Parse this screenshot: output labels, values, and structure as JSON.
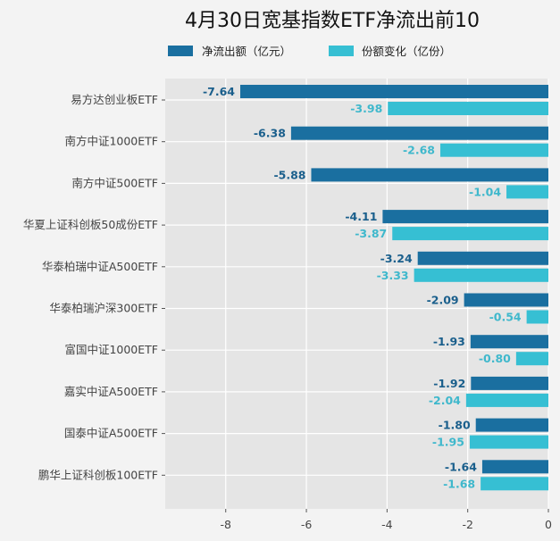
{
  "chart_data": {
    "type": "bar",
    "orientation": "horizontal",
    "title": "4月30日宽基指数ETF净流出前10",
    "categories": [
      "易方达创业板ETF",
      "南方中证1000ETF",
      "南方中证500ETF",
      "华夏上证科创板50成份ETF",
      "华泰柏瑞中证A500ETF",
      "华泰柏瑞沪深300ETF",
      "富国中证1000ETF",
      "嘉实中证A500ETF",
      "国泰中证A500ETF",
      "鹏华上证科创板100ETF"
    ],
    "series": [
      {
        "name": "净流出额（亿元）",
        "color": "#1a6fa0",
        "values": [
          -7.64,
          -6.38,
          -5.88,
          -4.11,
          -3.24,
          -2.09,
          -1.93,
          -1.92,
          -1.8,
          -1.64
        ]
      },
      {
        "name": "份额变化（亿份）",
        "color": "#36bfd3",
        "values": [
          -3.98,
          -2.68,
          -1.04,
          -3.87,
          -3.33,
          -0.54,
          -0.8,
          -2.04,
          -1.95,
          -1.68
        ]
      }
    ],
    "xlabel": "",
    "ylabel": "",
    "xlim": [
      -9.5,
      0
    ],
    "xticks": [
      -8,
      -6,
      -4,
      -2,
      0
    ],
    "grid": true,
    "legend_position": "top"
  }
}
